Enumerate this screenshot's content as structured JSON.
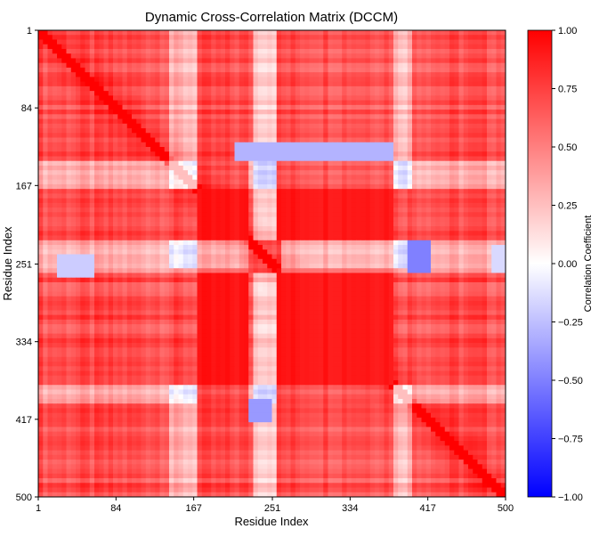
{
  "chart_data": {
    "type": "heatmap",
    "title": "Dynamic Cross-Correlation Matrix (DCCM)",
    "xlabel": "Residue Index",
    "ylabel": "Residue Index",
    "x_ticks": [
      1,
      84,
      167,
      251,
      334,
      417,
      500
    ],
    "y_ticks": [
      1,
      84,
      167,
      251,
      334,
      417,
      500
    ],
    "xlim": [
      1,
      500
    ],
    "ylim": [
      1,
      500
    ],
    "colorbar": {
      "label": "Correlation Coefficient",
      "ticks": [
        "1.00",
        "0.75",
        "0.50",
        "0.25",
        "0.00",
        "−0.25",
        "−0.50",
        "−0.75",
        "−1.00"
      ],
      "range": [
        -1.0,
        1.0
      ],
      "colors": {
        "high": "#ff0000",
        "mid": "#ffffff",
        "low": "#0000ff"
      }
    },
    "regions": [
      {
        "name": "diagonal",
        "correlation": 1.0
      },
      {
        "name": "core-block-1",
        "residues": [
          170,
          225
        ],
        "correlation": 0.9
      },
      {
        "name": "core-block-2",
        "residues": [
          255,
          380
        ],
        "correlation": 0.9
      },
      {
        "name": "anticorrelated-band",
        "residues_x": [
          225,
          250
        ],
        "residues_y": [
          395,
          420
        ],
        "correlation": -0.4
      },
      {
        "name": "anticorrelated-band",
        "residues_x": [
          210,
          380
        ],
        "residues_y": [
          120,
          140
        ],
        "correlation": -0.3
      },
      {
        "name": "anticorrelated-spot",
        "residues_x": [
          395,
          420
        ],
        "residues_y": [
          225,
          260
        ],
        "correlation": -0.5
      }
    ]
  }
}
